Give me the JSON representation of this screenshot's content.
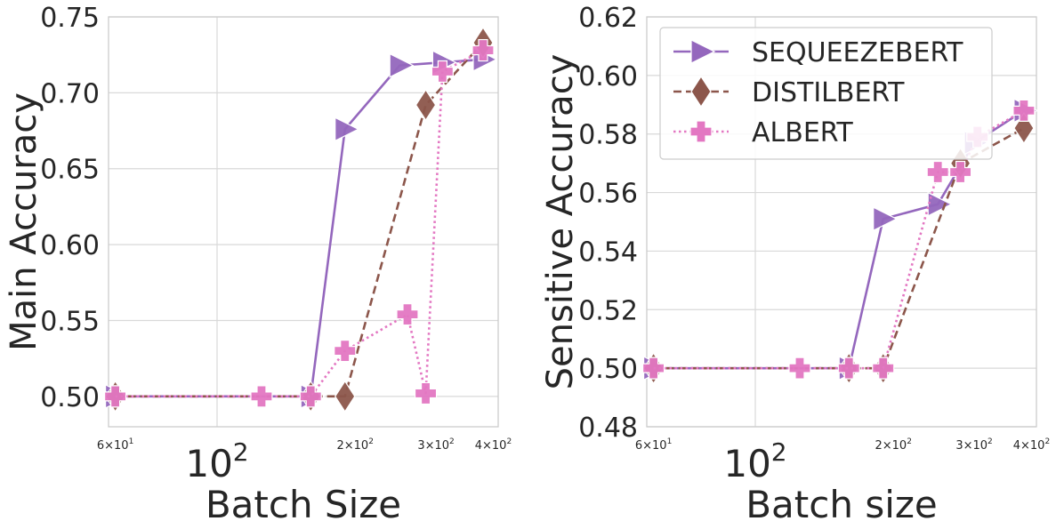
{
  "chart_data": [
    {
      "type": "line",
      "xlabel": "Batch Size",
      "ylabel": "Main Accuracy",
      "xscale": "log",
      "xlim": [
        58,
        410
      ],
      "ylim": [
        0.48,
        0.75
      ],
      "grid": true,
      "x_ticks": [
        {
          "value": 60,
          "base": "6×10",
          "exp": "1",
          "size": "minor"
        },
        {
          "value": 100,
          "base": "10",
          "exp": "2",
          "size": "major"
        },
        {
          "value": 200,
          "base": "2×10",
          "exp": "2",
          "size": "minor"
        },
        {
          "value": 300,
          "base": "3×10",
          "exp": "2",
          "size": "minor"
        },
        {
          "value": 400,
          "base": "4×10",
          "exp": "2",
          "size": "minor"
        }
      ],
      "y_ticks": [
        "0.50",
        "0.55",
        "0.60",
        "0.65",
        "0.70",
        "0.75"
      ],
      "series": [
        {
          "name": "SEQUEEZEBERT",
          "color": "#9467bd",
          "dash": "solid",
          "marker": "triangle-right",
          "x": [
            60,
            160,
            190,
            250,
            310,
            380
          ],
          "y": [
            0.5,
            0.5,
            0.676,
            0.718,
            0.72,
            0.722
          ]
        },
        {
          "name": "DISTILBERT",
          "color": "#8c564b",
          "dash": "dashed",
          "marker": "diamond",
          "x": [
            60,
            160,
            190,
            285,
            380
          ],
          "y": [
            0.5,
            0.5,
            0.5,
            0.692,
            0.733
          ]
        },
        {
          "name": "ALBERT",
          "color": "#e377c2",
          "dash": "dotted",
          "marker": "plus",
          "x": [
            60,
            125,
            160,
            190,
            260,
            285,
            310,
            380
          ],
          "y": [
            0.5,
            0.5,
            0.5,
            0.53,
            0.554,
            0.502,
            0.714,
            0.728
          ]
        }
      ]
    },
    {
      "type": "line",
      "xlabel": "Batch size",
      "ylabel": "Sensitive Accuracy",
      "xscale": "log",
      "xlim": [
        58,
        410
      ],
      "ylim": [
        0.48,
        0.62
      ],
      "grid": true,
      "legend": "top-left",
      "x_ticks": [
        {
          "value": 60,
          "base": "6×10",
          "exp": "1",
          "size": "minor"
        },
        {
          "value": 100,
          "base": "10",
          "exp": "2",
          "size": "major"
        },
        {
          "value": 200,
          "base": "2×10",
          "exp": "2",
          "size": "minor"
        },
        {
          "value": 300,
          "base": "3×10",
          "exp": "2",
          "size": "minor"
        },
        {
          "value": 400,
          "base": "4×10",
          "exp": "2",
          "size": "minor"
        }
      ],
      "y_ticks": [
        "0.48",
        "0.50",
        "0.52",
        "0.54",
        "0.56",
        "0.58",
        "0.60",
        "0.62"
      ],
      "series": [
        {
          "name": "SEQUEEZEBERT",
          "color": "#9467bd",
          "dash": "solid",
          "marker": "triangle-right",
          "x": [
            60,
            160,
            190,
            250,
            300,
            385
          ],
          "y": [
            0.5,
            0.5,
            0.551,
            0.556,
            0.577,
            0.588
          ]
        },
        {
          "name": "DISTILBERT",
          "color": "#8c564b",
          "dash": "dashed",
          "marker": "diamond",
          "x": [
            60,
            160,
            190,
            280,
            385
          ],
          "y": [
            0.5,
            0.5,
            0.5,
            0.57,
            0.582
          ]
        },
        {
          "name": "ALBERT",
          "color": "#e377c2",
          "dash": "dotted",
          "marker": "plus",
          "x": [
            60,
            125,
            160,
            190,
            250,
            280,
            305,
            385
          ],
          "y": [
            0.5,
            0.5,
            0.5,
            0.5,
            0.567,
            0.567,
            0.579,
            0.588
          ]
        }
      ]
    }
  ]
}
